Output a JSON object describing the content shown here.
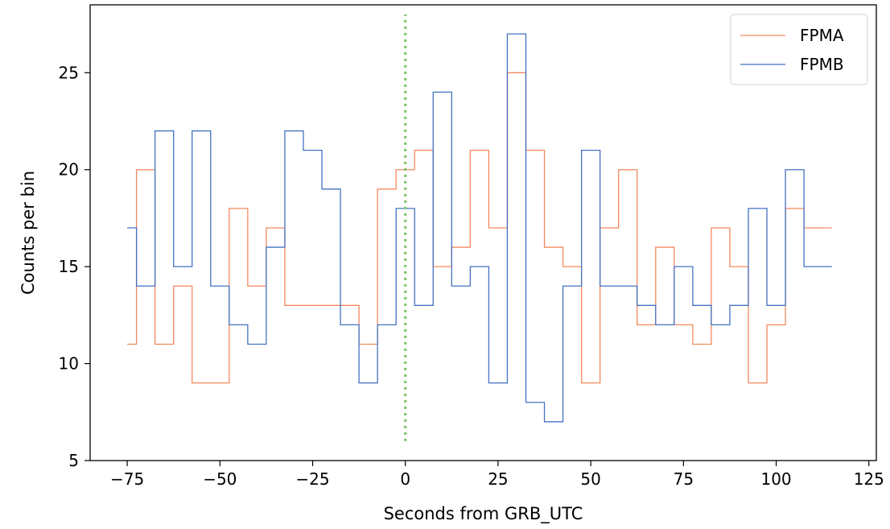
{
  "chart_data": {
    "type": "line",
    "drawstyle": "steps-mid",
    "xlabel": "Seconds from GRB_UTC",
    "ylabel": "Counts per bin",
    "xlim": [
      -85,
      127
    ],
    "ylim": [
      5,
      28.5
    ],
    "xticks": [
      -75,
      -50,
      -25,
      0,
      25,
      50,
      75,
      100,
      125
    ],
    "xtick_labels": [
      "−75",
      "−50",
      "−25",
      "0",
      "25",
      "50",
      "75",
      "100",
      "125"
    ],
    "yticks": [
      5,
      10,
      15,
      20,
      25
    ],
    "ytick_labels": [
      "5",
      "10",
      "15",
      "20",
      "25"
    ],
    "x": [
      -75,
      -70,
      -65,
      -60,
      -55,
      -50,
      -45,
      -40,
      -35,
      -30,
      -25,
      -20,
      -15,
      -10,
      -5,
      0,
      5,
      10,
      15,
      20,
      25,
      30,
      35,
      40,
      45,
      50,
      55,
      60,
      65,
      70,
      75,
      80,
      85,
      90,
      95,
      100,
      105,
      110,
      115
    ],
    "series": [
      {
        "name": "FPMA",
        "color": "#f4895f",
        "values": [
          11,
          20,
          11,
          14,
          9,
          9,
          18,
          14,
          17,
          13,
          13,
          13,
          13,
          11,
          19,
          20,
          21,
          15,
          16,
          21,
          17,
          25,
          21,
          16,
          15,
          9,
          17,
          20,
          12,
          16,
          12,
          11,
          17,
          15,
          9,
          12,
          18,
          17,
          17
        ]
      },
      {
        "name": "FPMB",
        "color": "#4472c4",
        "values": [
          17,
          14,
          22,
          15,
          22,
          14,
          12,
          11,
          16,
          22,
          21,
          19,
          12,
          9,
          12,
          18,
          13,
          24,
          14,
          15,
          9,
          27,
          8,
          7,
          14,
          21,
          14,
          14,
          13,
          12,
          15,
          13,
          12,
          13,
          18,
          13,
          20,
          15,
          15
        ]
      }
    ],
    "vline": {
      "x": 0,
      "y_from": 6,
      "y_to": 28,
      "color": "#7cc46c",
      "style": "dotted"
    },
    "legend_position": "top-right",
    "grid": false
  }
}
